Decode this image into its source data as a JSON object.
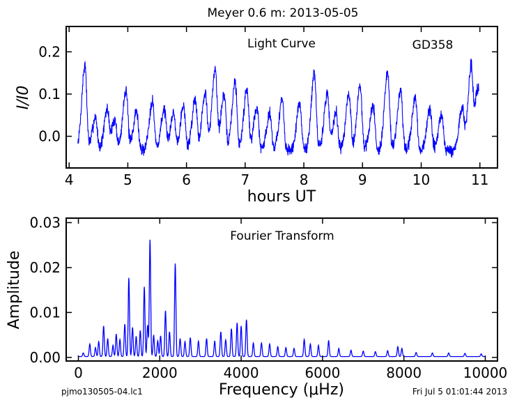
{
  "page": {
    "suptitle": "Meyer 0.6 m:  2013-05-05",
    "footer_left": "pjmo130505-04.lc1",
    "footer_right": "Fri Jul  5 01:01:44 2013"
  },
  "chart_data": [
    {
      "type": "line",
      "title": "Light Curve",
      "annotation": "GD358",
      "xlabel": "hours UT",
      "ylabel": "I/I0",
      "xlim": [
        3.95,
        11.3
      ],
      "ylim": [
        -0.075,
        0.26
      ],
      "xticks": [
        4,
        5,
        6,
        7,
        8,
        9,
        10,
        11
      ],
      "yticks": [
        0.0,
        0.1,
        0.2
      ],
      "ytick_labels": [
        "0.0",
        "0.1",
        "0.2"
      ],
      "line_color": "#0000ff",
      "data_range_x": [
        4.15,
        10.98
      ],
      "noise_level": 0.012,
      "seed": 7,
      "peaks": [
        {
          "x": 4.27,
          "y": 0.167
        },
        {
          "x": 4.45,
          "y": 0.045
        },
        {
          "x": 4.65,
          "y": 0.06
        },
        {
          "x": 4.78,
          "y": 0.04
        },
        {
          "x": 4.97,
          "y": 0.112
        },
        {
          "x": 5.15,
          "y": 0.06
        },
        {
          "x": 5.42,
          "y": 0.085
        },
        {
          "x": 5.62,
          "y": 0.063
        },
        {
          "x": 5.78,
          "y": 0.055
        },
        {
          "x": 5.95,
          "y": 0.073
        },
        {
          "x": 6.15,
          "y": 0.09
        },
        {
          "x": 6.32,
          "y": 0.105
        },
        {
          "x": 6.49,
          "y": 0.16
        },
        {
          "x": 6.64,
          "y": 0.098
        },
        {
          "x": 6.83,
          "y": 0.128
        },
        {
          "x": 7.03,
          "y": 0.113
        },
        {
          "x": 7.2,
          "y": 0.07
        },
        {
          "x": 7.42,
          "y": 0.055
        },
        {
          "x": 7.63,
          "y": 0.085
        },
        {
          "x": 7.93,
          "y": 0.075
        },
        {
          "x": 8.18,
          "y": 0.148
        },
        {
          "x": 8.4,
          "y": 0.1
        },
        {
          "x": 8.55,
          "y": 0.058
        },
        {
          "x": 8.77,
          "y": 0.098
        },
        {
          "x": 8.96,
          "y": 0.12
        },
        {
          "x": 9.18,
          "y": 0.075
        },
        {
          "x": 9.43,
          "y": 0.153
        },
        {
          "x": 9.65,
          "y": 0.11
        },
        {
          "x": 9.9,
          "y": 0.09
        },
        {
          "x": 10.15,
          "y": 0.063
        },
        {
          "x": 10.35,
          "y": 0.05
        },
        {
          "x": 10.7,
          "y": 0.065
        },
        {
          "x": 10.85,
          "y": 0.155
        },
        {
          "x": 10.97,
          "y": 0.117
        }
      ]
    },
    {
      "type": "line",
      "title": "Fourier Transform",
      "xlabel": "Frequency (μHz)",
      "ylabel": "Amplitude",
      "xlim": [
        -300,
        10300
      ],
      "ylim": [
        -0.0008,
        0.031
      ],
      "xticks": [
        0,
        2000,
        4000,
        6000,
        8000,
        10000
      ],
      "yticks": [
        0.0,
        0.01,
        0.02,
        0.03
      ],
      "ytick_labels": [
        "0.00",
        "0.01",
        "0.02",
        "0.03"
      ],
      "line_color": "#0000ff",
      "data_range_x": [
        0,
        10000
      ],
      "peaks": [
        {
          "x": 120,
          "y": 0.0008
        },
        {
          "x": 280,
          "y": 0.0028
        },
        {
          "x": 420,
          "y": 0.002
        },
        {
          "x": 500,
          "y": 0.0033
        },
        {
          "x": 620,
          "y": 0.0068
        },
        {
          "x": 720,
          "y": 0.004
        },
        {
          "x": 850,
          "y": 0.0025
        },
        {
          "x": 930,
          "y": 0.005
        },
        {
          "x": 1020,
          "y": 0.0038
        },
        {
          "x": 1140,
          "y": 0.0072
        },
        {
          "x": 1240,
          "y": 0.0175
        },
        {
          "x": 1330,
          "y": 0.0065
        },
        {
          "x": 1420,
          "y": 0.0045
        },
        {
          "x": 1520,
          "y": 0.0058
        },
        {
          "x": 1620,
          "y": 0.0155
        },
        {
          "x": 1700,
          "y": 0.007
        },
        {
          "x": 1760,
          "y": 0.026
        },
        {
          "x": 1850,
          "y": 0.0048
        },
        {
          "x": 1950,
          "y": 0.0035
        },
        {
          "x": 2020,
          "y": 0.0046
        },
        {
          "x": 2140,
          "y": 0.0102
        },
        {
          "x": 2240,
          "y": 0.0055
        },
        {
          "x": 2380,
          "y": 0.0207
        },
        {
          "x": 2500,
          "y": 0.004
        },
        {
          "x": 2620,
          "y": 0.0033
        },
        {
          "x": 2750,
          "y": 0.0042
        },
        {
          "x": 2950,
          "y": 0.0034
        },
        {
          "x": 3150,
          "y": 0.004
        },
        {
          "x": 3350,
          "y": 0.0035
        },
        {
          "x": 3500,
          "y": 0.0055
        },
        {
          "x": 3620,
          "y": 0.0037
        },
        {
          "x": 3760,
          "y": 0.0062
        },
        {
          "x": 3900,
          "y": 0.0075
        },
        {
          "x": 4000,
          "y": 0.0068
        },
        {
          "x": 4130,
          "y": 0.0082
        },
        {
          "x": 4300,
          "y": 0.003
        },
        {
          "x": 4500,
          "y": 0.003
        },
        {
          "x": 4700,
          "y": 0.0028
        },
        {
          "x": 4900,
          "y": 0.0022
        },
        {
          "x": 5100,
          "y": 0.002
        },
        {
          "x": 5300,
          "y": 0.0018
        },
        {
          "x": 5550,
          "y": 0.0038
        },
        {
          "x": 5700,
          "y": 0.0028
        },
        {
          "x": 5900,
          "y": 0.0025
        },
        {
          "x": 6150,
          "y": 0.0036
        },
        {
          "x": 6400,
          "y": 0.0018
        },
        {
          "x": 6700,
          "y": 0.0014
        },
        {
          "x": 7000,
          "y": 0.0012
        },
        {
          "x": 7300,
          "y": 0.0011
        },
        {
          "x": 7600,
          "y": 0.0013
        },
        {
          "x": 7850,
          "y": 0.0022
        },
        {
          "x": 7950,
          "y": 0.0018
        },
        {
          "x": 8300,
          "y": 0.0009
        },
        {
          "x": 8700,
          "y": 0.0008
        },
        {
          "x": 9100,
          "y": 0.0008
        },
        {
          "x": 9500,
          "y": 0.0007
        },
        {
          "x": 9900,
          "y": 0.0006
        }
      ]
    }
  ]
}
